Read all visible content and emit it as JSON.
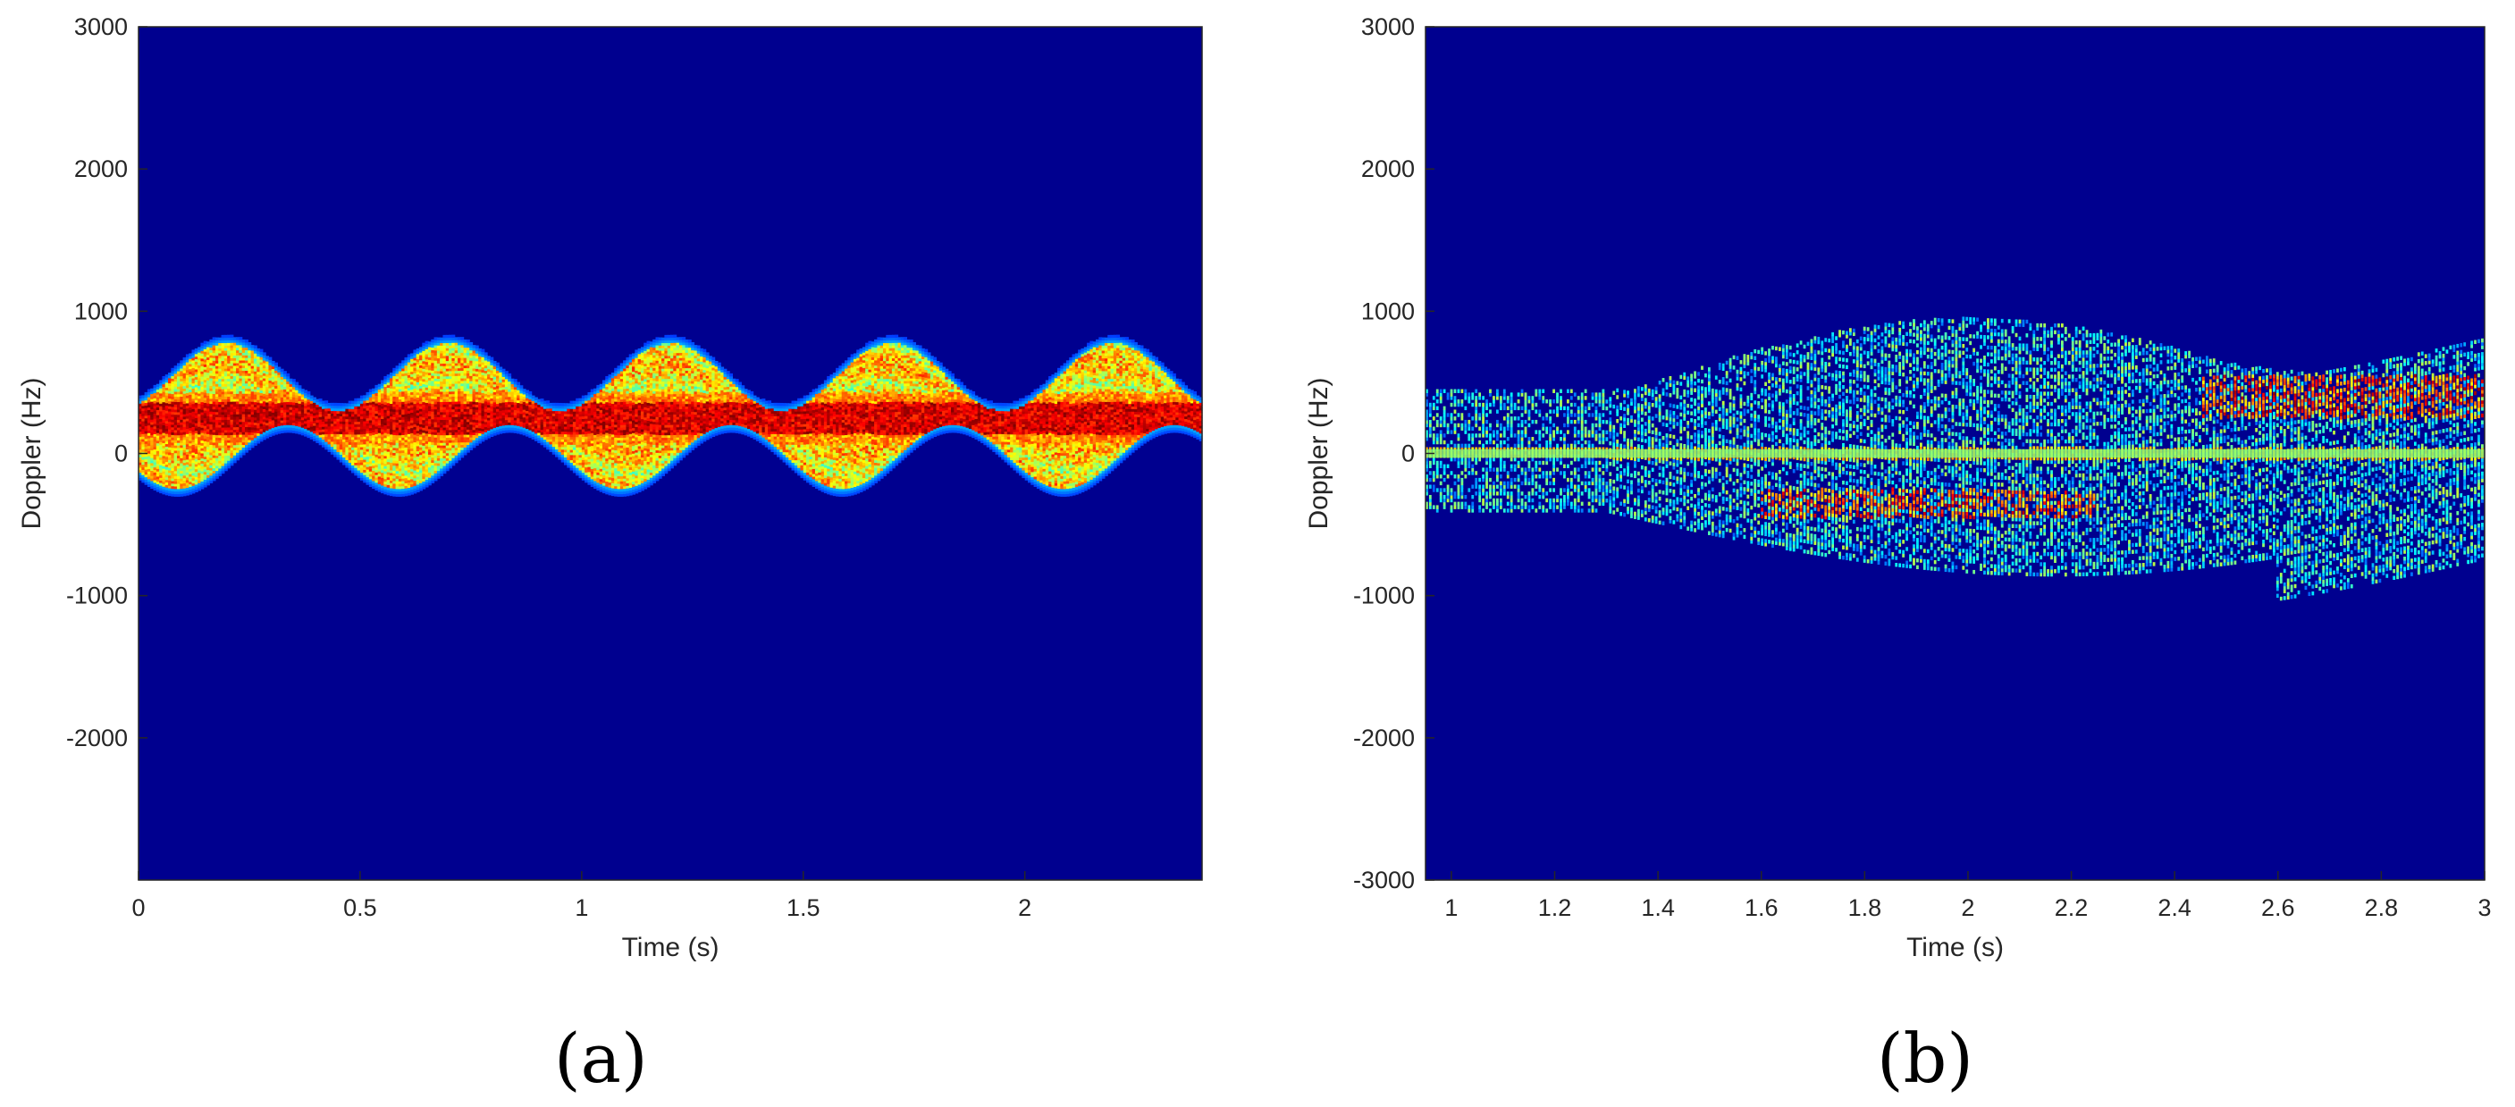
{
  "chart_data": [
    {
      "panel": "a",
      "type": "heatmap",
      "caption": "(a)",
      "xlabel": "Time (s)",
      "ylabel": "Doppler (Hz)",
      "xlim": [
        0,
        2.4
      ],
      "ylim": [
        -3000,
        3000
      ],
      "xticks": [
        "0",
        "0.5",
        "1",
        "1.5",
        "2"
      ],
      "xtick_values": [
        0,
        0.5,
        1,
        1.5,
        2
      ],
      "yticks": [
        "3000",
        "2000",
        "1000",
        "0",
        "-1000",
        "-2000"
      ],
      "ytick_values": [
        3000,
        2000,
        1000,
        0,
        -1000,
        -2000
      ],
      "colormap": "jet",
      "background_color": "#00008f",
      "signal": {
        "description_values": "periodic micro-Doppler band",
        "center_doppler_hz": 250,
        "envelope_max_hz": 780,
        "envelope_min_hz": -250,
        "period_s": 0.5,
        "first_peak_s": 0.2
      }
    },
    {
      "panel": "b",
      "type": "heatmap",
      "caption": "(b)",
      "xlabel": "Time (s)",
      "ylabel": "Doppler (Hz)",
      "xlim": [
        0.95,
        3
      ],
      "ylim": [
        -3000,
        3000
      ],
      "xticks": [
        "1",
        "1.2",
        "1.4",
        "1.6",
        "1.8",
        "2",
        "2.2",
        "2.4",
        "2.6",
        "2.8",
        "3"
      ],
      "xtick_values": [
        1,
        1.2,
        1.4,
        1.6,
        1.8,
        2,
        2.2,
        2.4,
        2.6,
        2.8,
        3
      ],
      "yticks": [
        "3000",
        "2000",
        "1000",
        "0",
        "-1000",
        "-2000",
        "-3000"
      ],
      "ytick_values": [
        3000,
        2000,
        1000,
        0,
        -1000,
        -2000,
        -3000
      ],
      "colormap": "jet",
      "background_color": "#00008f",
      "signal": {
        "zero_doppler_line_hz": 0,
        "spread_max_hz": 1050,
        "spread_min_hz": -1100
      }
    }
  ]
}
